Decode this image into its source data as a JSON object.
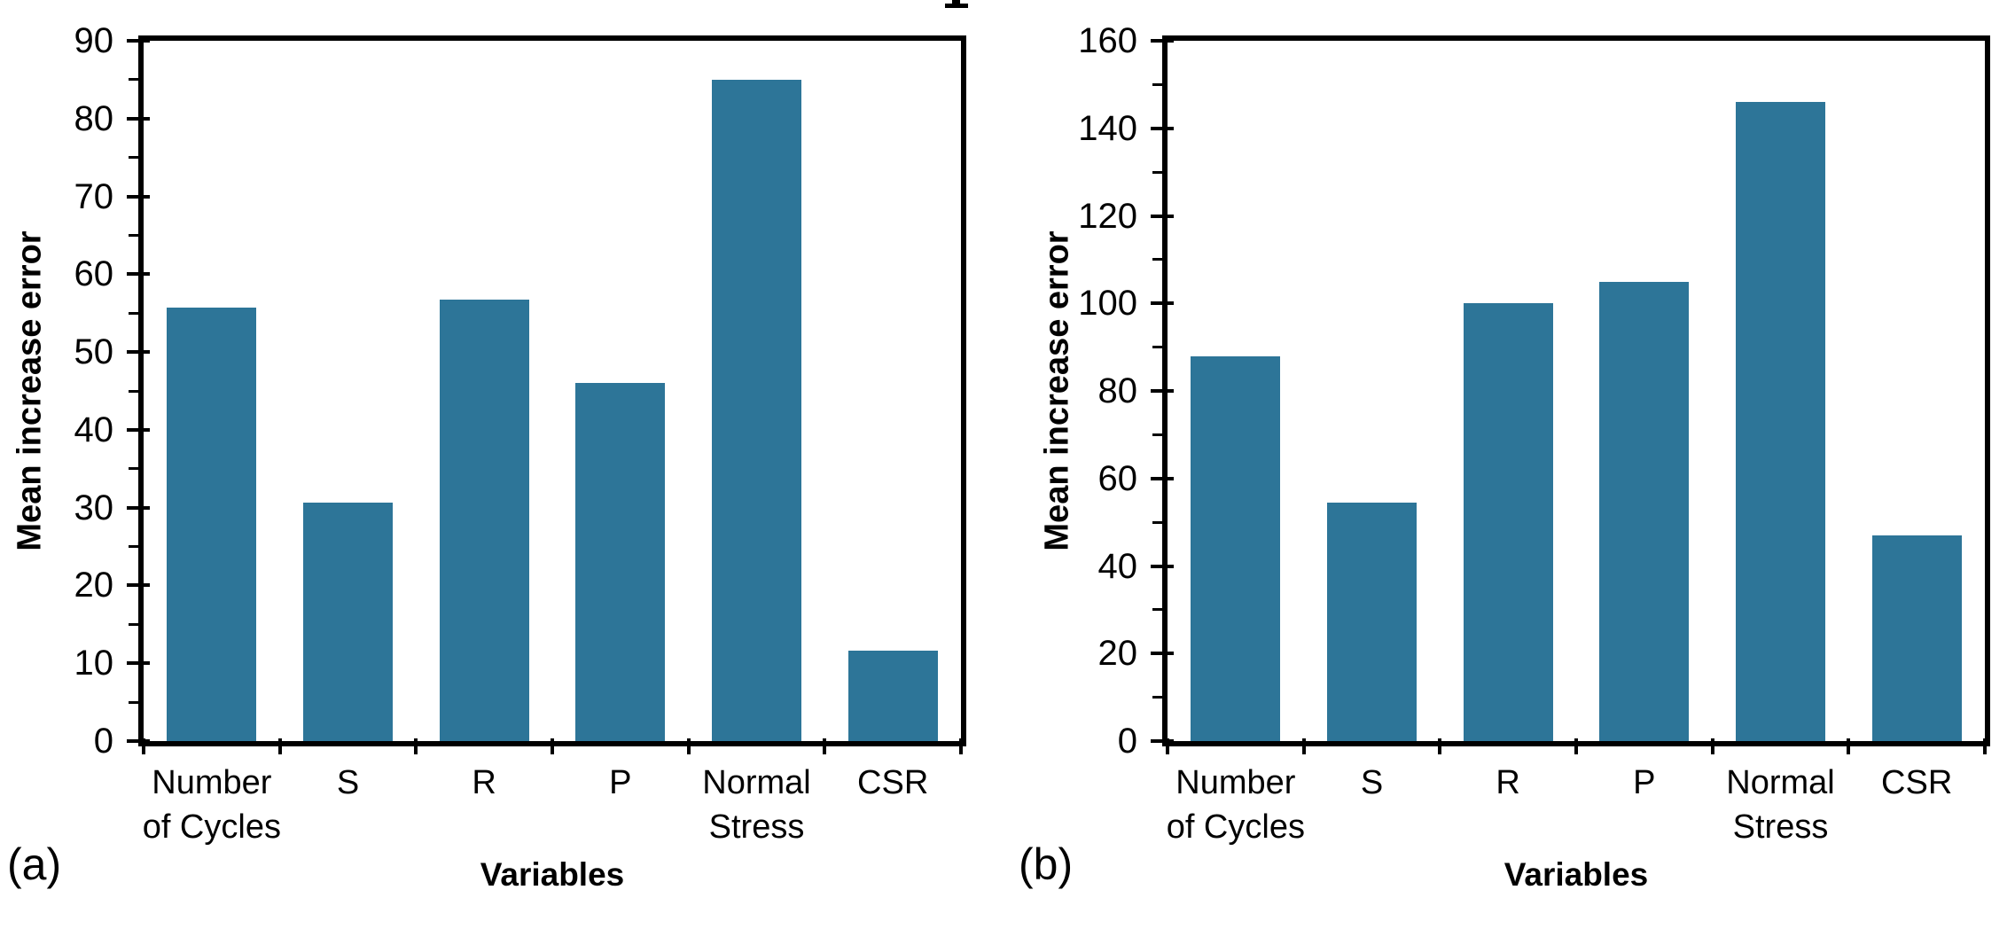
{
  "figure": {
    "background": "#ffffff",
    "axis_color": "#000000",
    "note_top_fragment": "partial descender of cropped title text"
  },
  "chart_data": [
    {
      "type": "bar",
      "panel_label": "(a)",
      "title": "",
      "categories": [
        "Number of Cycles",
        "S",
        "R",
        "P",
        "Normal Stress",
        "CSR"
      ],
      "category_lines": [
        [
          "Number",
          "of Cycles"
        ],
        [
          "S"
        ],
        [
          "R"
        ],
        [
          "P"
        ],
        [
          "Normal",
          "Stress"
        ],
        [
          "CSR"
        ]
      ],
      "values": [
        55.7,
        30.6,
        56.7,
        46,
        85,
        11.6
      ],
      "xlabel": "Variables",
      "ylabel": "Mean increase error",
      "ylim": [
        0,
        90
      ],
      "ytick_step": 10,
      "minor_tick_step": 5,
      "ytick_labels": [
        "0",
        "10",
        "20",
        "30",
        "40",
        "50",
        "60",
        "70",
        "80",
        "90"
      ],
      "bar_color": "#2d7598",
      "grid": false,
      "legend": false
    },
    {
      "type": "bar",
      "panel_label": "(b)",
      "title": "",
      "categories": [
        "Number of Cycles",
        "S",
        "R",
        "P",
        "Normal Stress",
        "CSR"
      ],
      "category_lines": [
        [
          "Number",
          "of Cycles"
        ],
        [
          "S"
        ],
        [
          "R"
        ],
        [
          "P"
        ],
        [
          "Normal",
          "Stress"
        ],
        [
          "CSR"
        ]
      ],
      "values": [
        88,
        54.5,
        100,
        105,
        146,
        47
      ],
      "xlabel": "Variables",
      "ylabel": "Mean increase error",
      "ylim": [
        0,
        160
      ],
      "ytick_step": 20,
      "minor_tick_step": 10,
      "ytick_labels": [
        "0",
        "20",
        "40",
        "60",
        "80",
        "100",
        "120",
        "140",
        "160"
      ],
      "bar_color": "#2d7598",
      "grid": false,
      "legend": false
    }
  ]
}
